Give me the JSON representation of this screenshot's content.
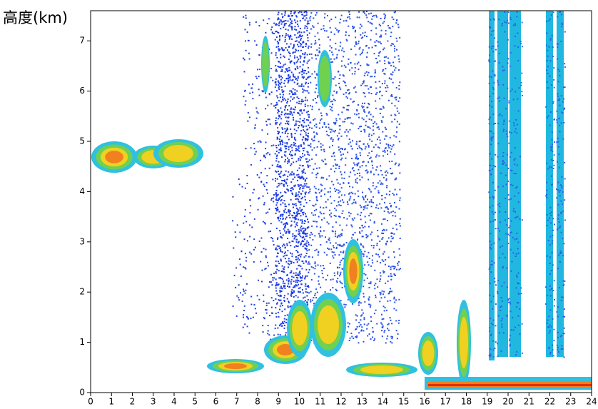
{
  "chart_data": {
    "type": "heatmap",
    "y_label": "高度(km)",
    "xlim": [
      0,
      24
    ],
    "xticks": [
      0,
      1,
      2,
      3,
      4,
      5,
      6,
      7,
      8,
      9,
      10,
      11,
      12,
      13,
      14,
      15,
      16,
      17,
      18,
      19,
      20,
      21,
      22,
      23,
      24
    ],
    "ylim": [
      0,
      7.6
    ],
    "yticks": [
      0,
      1,
      2,
      3,
      4,
      5,
      6,
      7
    ]
  }
}
